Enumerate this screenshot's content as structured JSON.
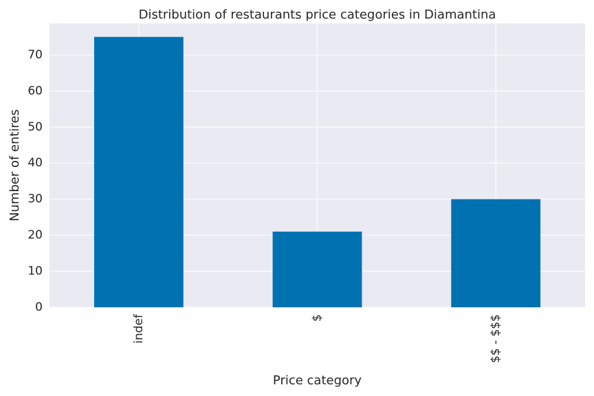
{
  "chart_data": {
    "type": "bar",
    "title": "Distribution of restaurants price categories in Diamantina",
    "xlabel": "Price category",
    "ylabel": "Number of entires",
    "categories": [
      "indef",
      "$",
      "$$ - $$$"
    ],
    "values": [
      75,
      21,
      30
    ],
    "ylim": [
      0,
      78.75
    ],
    "yticks": [
      0,
      10,
      20,
      30,
      40,
      50,
      60,
      70
    ],
    "grid": true,
    "legend": "none",
    "colors": {
      "bar": "#0072b2",
      "plot_background": "#eaeaf2",
      "grid": "#ffffff",
      "text": "#262626"
    }
  }
}
